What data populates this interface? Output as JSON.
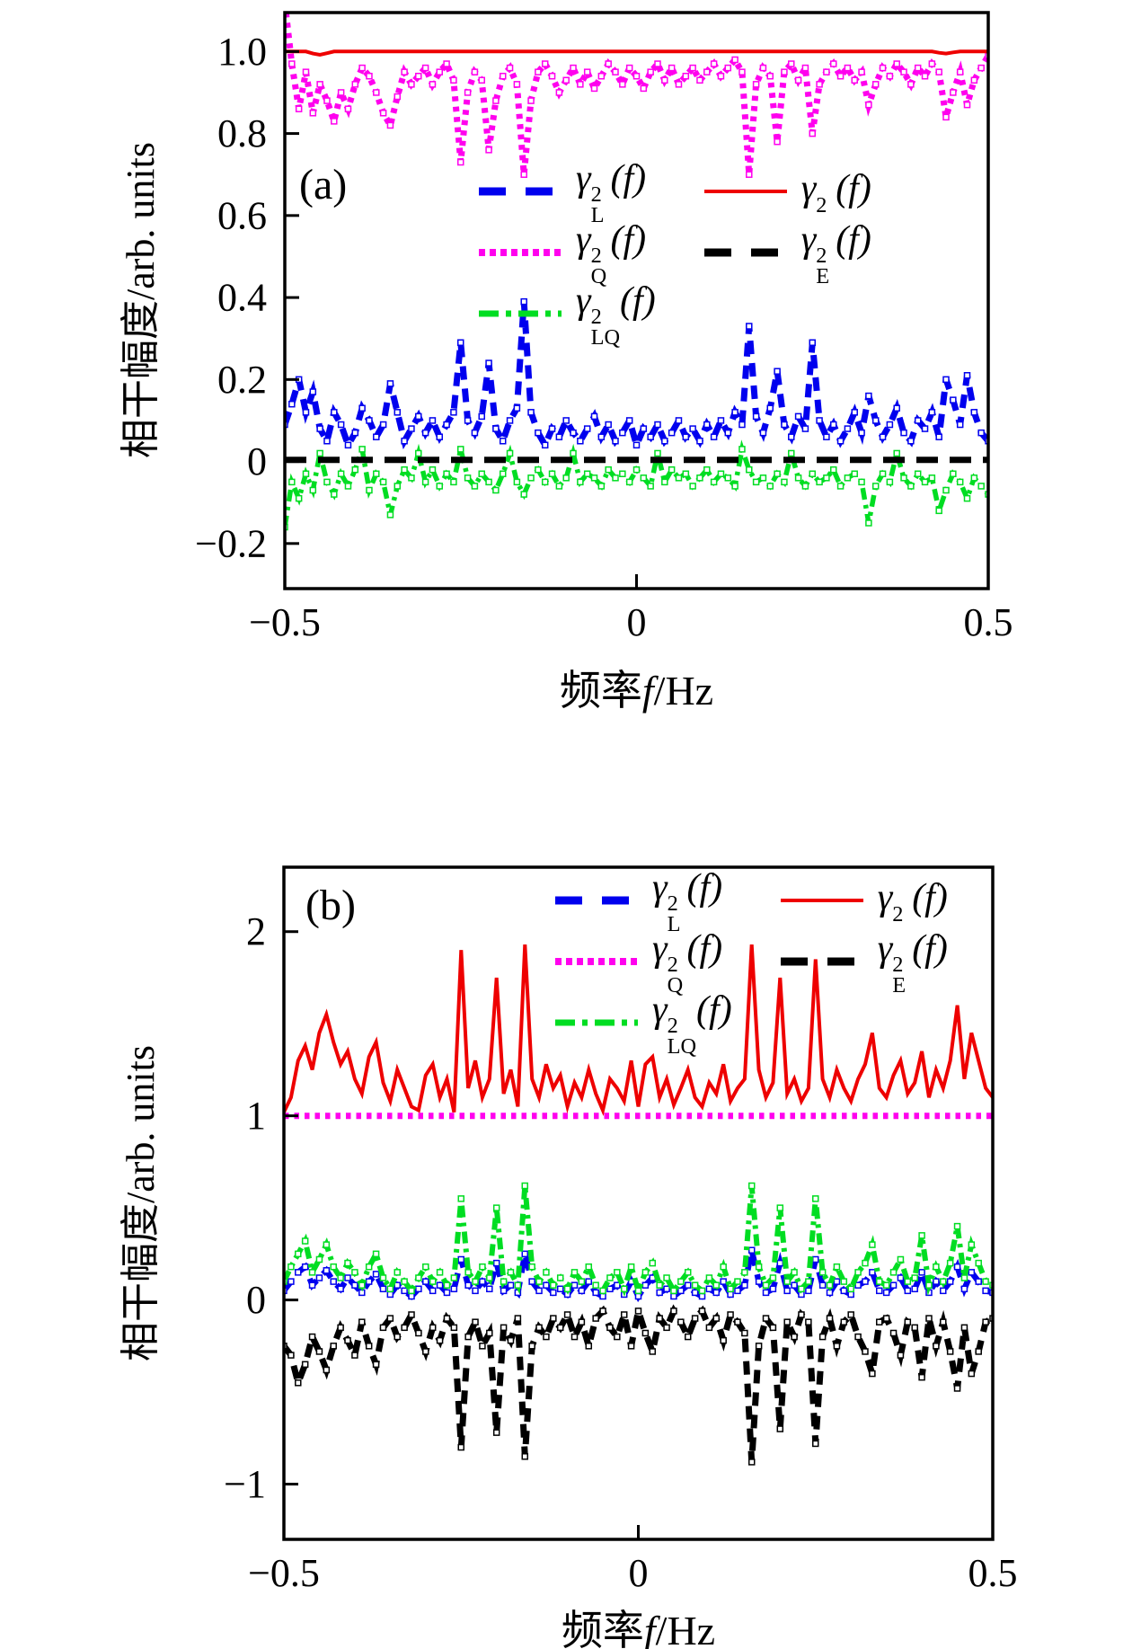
{
  "chart_data": [
    {
      "type": "line",
      "panel_label": "(a)",
      "xlabel": {
        "cn": "频率",
        "var": "f",
        "unit": "/Hz"
      },
      "ylabel": {
        "text": "相干幅度/arb. units"
      },
      "xlim": [
        -0.5,
        0.5
      ],
      "ylim": [
        -0.31,
        1.095
      ],
      "xticks": [
        -0.5,
        0,
        0.5
      ],
      "xtick_labels": [
        "−0.5",
        "0",
        "0.5"
      ],
      "yticks": [
        1.0,
        0.8,
        0.6,
        0.4,
        0.2,
        0,
        -0.2
      ],
      "ytick_labels": [
        "1.0",
        "0.8",
        "0.6",
        "0.4",
        "0.2",
        "0",
        "−0.2"
      ],
      "x_start": -0.5,
      "x_step": 0.01,
      "n_points": 101,
      "series": [
        {
          "id": "gamma2_Q",
          "label": {
            "base": "γ",
            "sup": "2",
            "sub": "Q",
            "tail": "(f)"
          },
          "color": "#ff00ee",
          "dash": "dotted",
          "width": 7,
          "marker": true,
          "values": [
            1.12,
            0.97,
            0.86,
            0.95,
            0.85,
            0.92,
            0.88,
            0.83,
            0.9,
            0.86,
            0.92,
            0.96,
            0.94,
            0.9,
            0.85,
            0.82,
            0.89,
            0.95,
            0.92,
            0.94,
            0.96,
            0.92,
            0.95,
            0.97,
            0.93,
            0.73,
            0.9,
            0.95,
            0.93,
            0.76,
            0.88,
            0.94,
            0.96,
            0.92,
            0.7,
            0.88,
            0.95,
            0.97,
            0.94,
            0.9,
            0.93,
            0.96,
            0.92,
            0.95,
            0.91,
            0.94,
            0.97,
            0.95,
            0.92,
            0.96,
            0.94,
            0.91,
            0.95,
            0.97,
            0.93,
            0.96,
            0.92,
            0.94,
            0.96,
            0.93,
            0.95,
            0.97,
            0.94,
            0.96,
            0.98,
            0.95,
            0.7,
            0.92,
            0.96,
            0.94,
            0.78,
            0.95,
            0.97,
            0.93,
            0.96,
            0.8,
            0.92,
            0.95,
            0.97,
            0.94,
            0.96,
            0.93,
            0.95,
            0.87,
            0.92,
            0.96,
            0.94,
            0.97,
            0.95,
            0.92,
            0.96,
            0.94,
            0.97,
            0.95,
            0.84,
            0.9,
            0.95,
            0.87,
            0.93,
            0.96,
            0.99
          ]
        },
        {
          "id": "gamma2_L",
          "label": {
            "base": "γ",
            "sup": "2",
            "sub": "L",
            "tail": "(f)"
          },
          "color": "#0000ee",
          "dash": "dashed",
          "width": 7,
          "marker": true,
          "values": [
            0.09,
            0.14,
            0.2,
            0.12,
            0.17,
            0.08,
            0.05,
            0.12,
            0.09,
            0.04,
            0.07,
            0.13,
            0.1,
            0.06,
            0.09,
            0.19,
            0.12,
            0.05,
            0.08,
            0.11,
            0.07,
            0.1,
            0.06,
            0.09,
            0.12,
            0.29,
            0.1,
            0.07,
            0.11,
            0.24,
            0.08,
            0.05,
            0.1,
            0.13,
            0.39,
            0.12,
            0.07,
            0.04,
            0.08,
            0.06,
            0.1,
            0.07,
            0.05,
            0.08,
            0.11,
            0.06,
            0.09,
            0.05,
            0.07,
            0.1,
            0.04,
            0.08,
            0.06,
            0.09,
            0.05,
            0.07,
            0.1,
            0.06,
            0.08,
            0.05,
            0.09,
            0.06,
            0.1,
            0.07,
            0.12,
            0.09,
            0.33,
            0.11,
            0.07,
            0.13,
            0.22,
            0.09,
            0.06,
            0.11,
            0.08,
            0.29,
            0.1,
            0.06,
            0.09,
            0.05,
            0.08,
            0.12,
            0.07,
            0.16,
            0.1,
            0.06,
            0.09,
            0.13,
            0.07,
            0.05,
            0.1,
            0.08,
            0.12,
            0.06,
            0.2,
            0.15,
            0.09,
            0.21,
            0.12,
            0.07,
            0.05
          ]
        },
        {
          "id": "gamma2_LQ",
          "label": {
            "base": "γ",
            "sup": "2",
            "sub": "LQ",
            "tail": "(f)"
          },
          "color": "#00dd22",
          "dash": "dashdot",
          "width": 5.5,
          "marker": true,
          "values": [
            -0.16,
            -0.05,
            -0.09,
            -0.03,
            -0.07,
            0.02,
            -0.05,
            -0.08,
            -0.03,
            -0.06,
            -0.02,
            0.03,
            -0.07,
            -0.03,
            -0.05,
            -0.13,
            -0.06,
            -0.02,
            -0.04,
            0.02,
            -0.05,
            -0.02,
            -0.06,
            -0.03,
            -0.05,
            0.03,
            -0.04,
            -0.06,
            -0.03,
            -0.05,
            -0.07,
            -0.03,
            0.02,
            -0.05,
            -0.08,
            -0.04,
            -0.02,
            -0.05,
            -0.03,
            -0.06,
            -0.04,
            0.02,
            -0.05,
            -0.03,
            -0.04,
            -0.06,
            -0.02,
            -0.04,
            -0.03,
            -0.05,
            -0.02,
            -0.04,
            -0.06,
            0.02,
            -0.05,
            -0.02,
            -0.04,
            -0.03,
            -0.06,
            -0.04,
            -0.02,
            -0.05,
            -0.03,
            -0.04,
            -0.06,
            0.03,
            -0.02,
            -0.05,
            -0.04,
            -0.06,
            -0.03,
            -0.05,
            0.02,
            -0.04,
            -0.06,
            -0.03,
            -0.05,
            -0.04,
            -0.02,
            -0.06,
            -0.04,
            -0.03,
            -0.05,
            -0.15,
            -0.06,
            -0.03,
            -0.05,
            0.02,
            -0.04,
            -0.06,
            -0.03,
            -0.05,
            -0.04,
            -0.12,
            -0.07,
            -0.03,
            -0.05,
            -0.09,
            -0.04,
            -0.06,
            -0.08
          ]
        },
        {
          "id": "gamma2_E",
          "label": {
            "base": "γ",
            "sup": "2",
            "sub": "E",
            "tail": "(f)"
          },
          "color": "#000000",
          "dash": "longdash",
          "width": 7,
          "marker": false,
          "const": 0.004
        },
        {
          "id": "gamma2",
          "label": {
            "base": "γ",
            "sup": "2",
            "sub": "",
            "tail": "(f)"
          },
          "color": "#ee0000",
          "dash": "solid",
          "width": 4,
          "marker": false,
          "values": [
            1,
            1,
            1,
            1,
            0.995,
            0.992,
            0.996,
            1,
            1,
            1,
            1,
            1,
            1,
            1,
            1,
            1,
            1,
            1,
            1,
            1,
            1,
            1,
            1,
            1,
            1,
            1,
            1,
            1,
            1,
            1,
            1,
            1,
            1,
            1,
            1,
            1,
            1,
            1,
            1,
            1,
            1,
            1,
            1,
            1,
            1,
            1,
            1,
            1,
            1,
            1,
            1,
            1,
            1,
            1,
            1,
            1,
            1,
            1,
            1,
            1,
            1,
            1,
            1,
            1,
            1,
            1,
            1,
            1,
            1,
            1,
            1,
            1,
            1,
            1,
            1,
            1,
            1,
            1,
            1,
            1,
            1,
            1,
            1,
            1,
            1,
            1,
            1,
            1,
            1,
            1,
            1,
            1,
            1,
            0.997,
            0.995,
            0.998,
            1,
            1,
            1,
            1,
            1
          ]
        }
      ]
    },
    {
      "type": "line",
      "panel_label": "(b)",
      "xlabel": {
        "cn": "频率",
        "var": "f",
        "unit": "/Hz"
      },
      "ylabel": {
        "text": "相干幅度/arb. units"
      },
      "xlim": [
        -0.5,
        0.5
      ],
      "ylim": [
        -1.3,
        2.35
      ],
      "xticks": [
        -0.5,
        0,
        0.5
      ],
      "xtick_labels": [
        "−0.5",
        "0",
        "0.5"
      ],
      "yticks": [
        2,
        1,
        0,
        -1
      ],
      "ytick_labels": [
        "2",
        "1",
        "0",
        "−1"
      ],
      "x_start": -0.5,
      "x_step": 0.01,
      "n_points": 101,
      "series": [
        {
          "id": "gamma2_Q",
          "label": {
            "base": "γ",
            "sup": "2",
            "sub": "Q",
            "tail": "(f)"
          },
          "color": "#ff00ee",
          "dash": "dotted",
          "width": 7,
          "marker": false,
          "const": 1.0
        },
        {
          "id": "gamma2",
          "label": {
            "base": "γ",
            "sup": "2",
            "sub": "",
            "tail": "(f)"
          },
          "color": "#ee0000",
          "dash": "solid",
          "width": 4,
          "marker": false,
          "values": [
            1.02,
            1.1,
            1.3,
            1.38,
            1.25,
            1.45,
            1.55,
            1.4,
            1.28,
            1.35,
            1.2,
            1.12,
            1.32,
            1.4,
            1.18,
            1.08,
            1.25,
            1.15,
            1.05,
            1.03,
            1.22,
            1.28,
            1.1,
            1.2,
            1.02,
            1.9,
            1.15,
            1.3,
            1.1,
            1.2,
            1.75,
            1.12,
            1.25,
            1.05,
            1.93,
            1.2,
            1.1,
            1.28,
            1.15,
            1.22,
            1.05,
            1.18,
            1.1,
            1.25,
            1.12,
            1.03,
            1.2,
            1.15,
            1.08,
            1.3,
            1.05,
            1.28,
            1.32,
            1.1,
            1.2,
            1.06,
            1.15,
            1.25,
            1.1,
            1.05,
            1.18,
            1.12,
            1.28,
            1.08,
            1.15,
            1.2,
            1.93,
            1.25,
            1.1,
            1.18,
            1.75,
            1.12,
            1.2,
            1.08,
            1.15,
            1.85,
            1.2,
            1.1,
            1.25,
            1.15,
            1.08,
            1.2,
            1.28,
            1.45,
            1.15,
            1.1,
            1.22,
            1.3,
            1.12,
            1.18,
            1.35,
            1.1,
            1.25,
            1.15,
            1.3,
            1.6,
            1.2,
            1.45,
            1.3,
            1.15,
            1.1
          ]
        },
        {
          "id": "gamma2_L",
          "label": {
            "base": "γ",
            "sup": "2",
            "sub": "L",
            "tail": "(f)"
          },
          "color": "#0000ee",
          "dash": "dashed",
          "width": 6.5,
          "marker": true,
          "values": [
            0.05,
            0.1,
            0.15,
            0.18,
            0.08,
            0.12,
            0.16,
            0.1,
            0.06,
            0.12,
            0.08,
            0.04,
            0.1,
            0.14,
            0.06,
            0.03,
            0.08,
            0.05,
            0.02,
            0.06,
            0.1,
            0.05,
            0.08,
            0.04,
            0.06,
            0.22,
            0.08,
            0.05,
            0.1,
            0.06,
            0.2,
            0.05,
            0.08,
            0.04,
            0.25,
            0.1,
            0.05,
            0.08,
            0.04,
            0.06,
            0.03,
            0.08,
            0.05,
            0.1,
            0.04,
            0.02,
            0.06,
            0.08,
            0.03,
            0.1,
            0.02,
            0.08,
            0.12,
            0.04,
            0.06,
            0.02,
            0.05,
            0.08,
            0.04,
            0.02,
            0.06,
            0.04,
            0.1,
            0.03,
            0.05,
            0.08,
            0.27,
            0.1,
            0.04,
            0.06,
            0.2,
            0.05,
            0.08,
            0.03,
            0.05,
            0.22,
            0.08,
            0.04,
            0.1,
            0.05,
            0.03,
            0.08,
            0.1,
            0.15,
            0.05,
            0.04,
            0.08,
            0.12,
            0.05,
            0.06,
            0.15,
            0.04,
            0.1,
            0.05,
            0.1,
            0.18,
            0.06,
            0.15,
            0.1,
            0.05,
            0.04
          ]
        },
        {
          "id": "gamma2_LQ",
          "label": {
            "base": "γ",
            "sup": "2",
            "sub": "LQ",
            "tail": "(f)"
          },
          "color": "#00dd22",
          "dash": "dashdot",
          "width": 6,
          "marker": true,
          "values": [
            0.1,
            0.18,
            0.25,
            0.32,
            0.15,
            0.22,
            0.3,
            0.18,
            0.12,
            0.2,
            0.15,
            0.08,
            0.18,
            0.25,
            0.12,
            0.06,
            0.15,
            0.1,
            0.05,
            0.12,
            0.18,
            0.1,
            0.15,
            0.08,
            0.12,
            0.55,
            0.15,
            0.1,
            0.18,
            0.12,
            0.5,
            0.1,
            0.15,
            0.08,
            0.62,
            0.18,
            0.1,
            0.15,
            0.08,
            0.12,
            0.06,
            0.15,
            0.1,
            0.18,
            0.08,
            0.05,
            0.12,
            0.15,
            0.06,
            0.18,
            0.05,
            0.15,
            0.2,
            0.08,
            0.12,
            0.05,
            0.1,
            0.15,
            0.08,
            0.05,
            0.12,
            0.08,
            0.18,
            0.06,
            0.1,
            0.15,
            0.62,
            0.18,
            0.08,
            0.12,
            0.5,
            0.1,
            0.15,
            0.06,
            0.1,
            0.55,
            0.15,
            0.08,
            0.18,
            0.1,
            0.06,
            0.15,
            0.2,
            0.3,
            0.1,
            0.08,
            0.15,
            0.22,
            0.1,
            0.12,
            0.35,
            0.08,
            0.18,
            0.1,
            0.2,
            0.4,
            0.12,
            0.3,
            0.2,
            0.1,
            0.08
          ]
        },
        {
          "id": "gamma2_E",
          "label": {
            "base": "γ",
            "sup": "2",
            "sub": "E",
            "tail": "(f)"
          },
          "color": "#000000",
          "dash": "dashed",
          "width": 7,
          "marker": true,
          "values": [
            -0.25,
            -0.3,
            -0.45,
            -0.35,
            -0.2,
            -0.28,
            -0.38,
            -0.25,
            -0.15,
            -0.22,
            -0.3,
            -0.12,
            -0.25,
            -0.35,
            -0.15,
            -0.1,
            -0.2,
            -0.15,
            -0.08,
            -0.18,
            -0.28,
            -0.15,
            -0.22,
            -0.1,
            -0.15,
            -0.8,
            -0.2,
            -0.12,
            -0.25,
            -0.18,
            -0.72,
            -0.15,
            -0.22,
            -0.1,
            -0.85,
            -0.25,
            -0.15,
            -0.2,
            -0.1,
            -0.15,
            -0.08,
            -0.2,
            -0.12,
            -0.25,
            -0.1,
            -0.06,
            -0.15,
            -0.2,
            -0.08,
            -0.25,
            -0.06,
            -0.18,
            -0.28,
            -0.1,
            -0.15,
            -0.06,
            -0.12,
            -0.2,
            -0.1,
            -0.06,
            -0.15,
            -0.1,
            -0.22,
            -0.08,
            -0.12,
            -0.18,
            -0.88,
            -0.25,
            -0.1,
            -0.15,
            -0.7,
            -0.12,
            -0.2,
            -0.08,
            -0.12,
            -0.78,
            -0.2,
            -0.1,
            -0.25,
            -0.12,
            -0.08,
            -0.2,
            -0.28,
            -0.4,
            -0.12,
            -0.1,
            -0.18,
            -0.3,
            -0.12,
            -0.15,
            -0.42,
            -0.1,
            -0.25,
            -0.12,
            -0.28,
            -0.48,
            -0.15,
            -0.4,
            -0.28,
            -0.12,
            -0.1
          ]
        }
      ]
    }
  ]
}
